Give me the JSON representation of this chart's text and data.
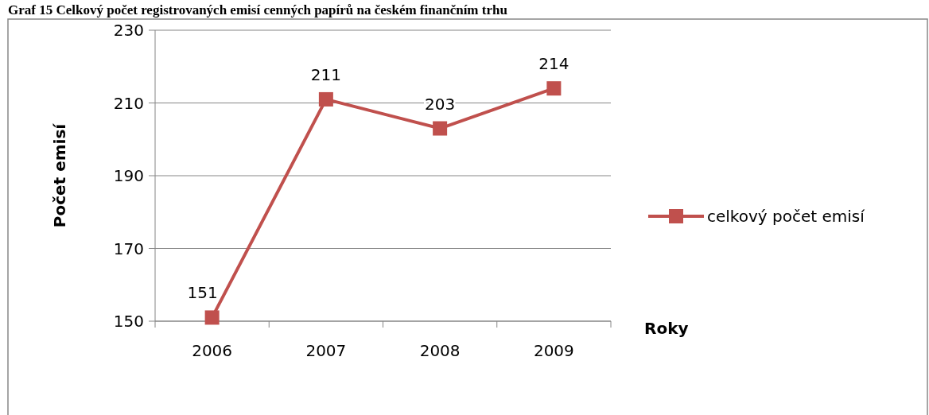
{
  "chart_data": {
    "type": "line",
    "title": "Graf 15 Celkový počet registrovaných emisí cenných papírů na českém finančním trhu",
    "xlabel": "Roky",
    "ylabel": "Počet emisí",
    "categories": [
      "2006",
      "2007",
      "2008",
      "2009"
    ],
    "series": [
      {
        "name": "celkový počet emisí",
        "color": "#c0504d",
        "values": [
          151,
          211,
          203,
          214
        ]
      }
    ],
    "ylim": [
      150,
      230
    ],
    "yticks": [
      150,
      170,
      190,
      210,
      230
    ],
    "grid": "y",
    "legend": "right",
    "marker": "square",
    "data_labels": true
  }
}
